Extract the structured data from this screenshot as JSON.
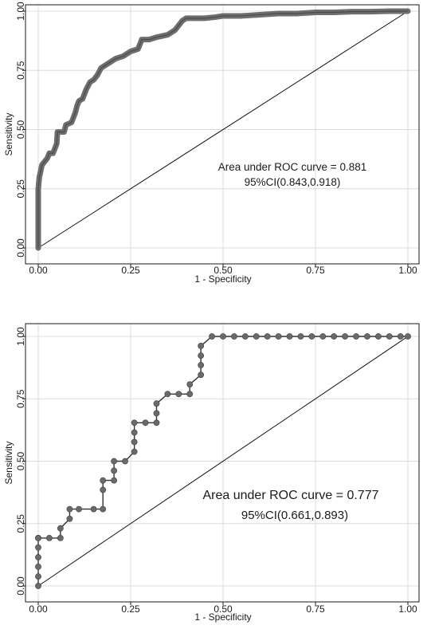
{
  "chart_data": [
    {
      "type": "line",
      "xlabel": "1 - Specificity",
      "ylabel": "Sensitivity",
      "xlim": [
        0,
        1
      ],
      "ylim": [
        0,
        1
      ],
      "xticks": [
        "0.00",
        "0.25",
        "0.50",
        "0.75",
        "1.00"
      ],
      "yticks": [
        "0.00",
        "0.25",
        "0.50",
        "0.75",
        "1.00"
      ],
      "grid": true,
      "annotation": [
        "Area under ROC curve = 0.881",
        "95%CI(0.843,0.918)"
      ],
      "reference_line": [
        [
          0,
          0
        ],
        [
          1,
          1
        ]
      ],
      "series": [
        {
          "x": [
            0,
            0,
            0.003,
            0.006,
            0.01,
            0.015,
            0.02,
            0.025,
            0.03,
            0.04,
            0.05,
            0.052,
            0.07,
            0.075,
            0.09,
            0.1,
            0.105,
            0.11,
            0.12,
            0.125,
            0.13,
            0.14,
            0.15,
            0.16,
            0.17,
            0.18,
            0.2,
            0.21,
            0.23,
            0.25,
            0.27,
            0.28,
            0.3,
            0.32,
            0.35,
            0.37,
            0.38,
            0.39,
            0.4,
            0.42,
            0.45,
            0.48,
            0.5,
            0.55,
            0.6,
            0.65,
            0.7,
            0.75,
            0.8,
            0.85,
            0.9,
            0.95,
            1
          ],
          "y": [
            0,
            0.25,
            0.3,
            0.32,
            0.35,
            0.36,
            0.37,
            0.38,
            0.4,
            0.4,
            0.44,
            0.49,
            0.49,
            0.52,
            0.53,
            0.57,
            0.6,
            0.62,
            0.63,
            0.65,
            0.67,
            0.7,
            0.71,
            0.73,
            0.76,
            0.77,
            0.79,
            0.8,
            0.81,
            0.83,
            0.84,
            0.88,
            0.88,
            0.89,
            0.9,
            0.92,
            0.94,
            0.96,
            0.97,
            0.97,
            0.97,
            0.975,
            0.98,
            0.98,
            0.985,
            0.99,
            0.99,
            0.995,
            0.995,
            0.998,
            0.998,
            1,
            1
          ]
        }
      ]
    },
    {
      "type": "line",
      "xlabel": "1 - Specificity",
      "ylabel": "Sensitivity",
      "xlim": [
        0,
        1
      ],
      "ylim": [
        0,
        1
      ],
      "xticks": [
        "0.00",
        "0.25",
        "0.50",
        "0.75",
        "1.00"
      ],
      "yticks": [
        "0.00",
        "0.25",
        "0.50",
        "0.75",
        "1.00"
      ],
      "grid": true,
      "annotation": [
        "Area under ROC curve = 0.777",
        "95%CI(0.661,0.893)"
      ],
      "reference_line": [
        [
          0,
          0
        ],
        [
          1,
          1
        ]
      ],
      "series": [
        {
          "x": [
            0,
            0,
            0,
            0,
            0,
            0,
            0,
            0.03,
            0.06,
            0.06,
            0.085,
            0.085,
            0.11,
            0.15,
            0.175,
            0.175,
            0.175,
            0.205,
            0.205,
            0.205,
            0.235,
            0.26,
            0.26,
            0.26,
            0.26,
            0.29,
            0.32,
            0.32,
            0.32,
            0.35,
            0.38,
            0.41,
            0.41,
            0.44,
            0.44,
            0.44,
            0.44,
            0.47,
            0.5,
            0.53,
            0.56,
            0.59,
            0.62,
            0.65,
            0.68,
            0.71,
            0.74,
            0.77,
            0.8,
            0.83,
            0.86,
            0.89,
            0.92,
            0.95,
            0.98,
            1
          ],
          "y": [
            0,
            0.038,
            0.077,
            0.115,
            0.154,
            0.192,
            0.192,
            0.192,
            0.192,
            0.231,
            0.269,
            0.308,
            0.308,
            0.308,
            0.308,
            0.385,
            0.423,
            0.423,
            0.462,
            0.5,
            0.5,
            0.538,
            0.577,
            0.615,
            0.654,
            0.654,
            0.654,
            0.692,
            0.731,
            0.769,
            0.769,
            0.769,
            0.808,
            0.846,
            0.885,
            0.923,
            0.962,
            1,
            1,
            1,
            1,
            1,
            1,
            1,
            1,
            1,
            1,
            1,
            1,
            1,
            1,
            1,
            1,
            1,
            1,
            1
          ]
        }
      ]
    }
  ]
}
